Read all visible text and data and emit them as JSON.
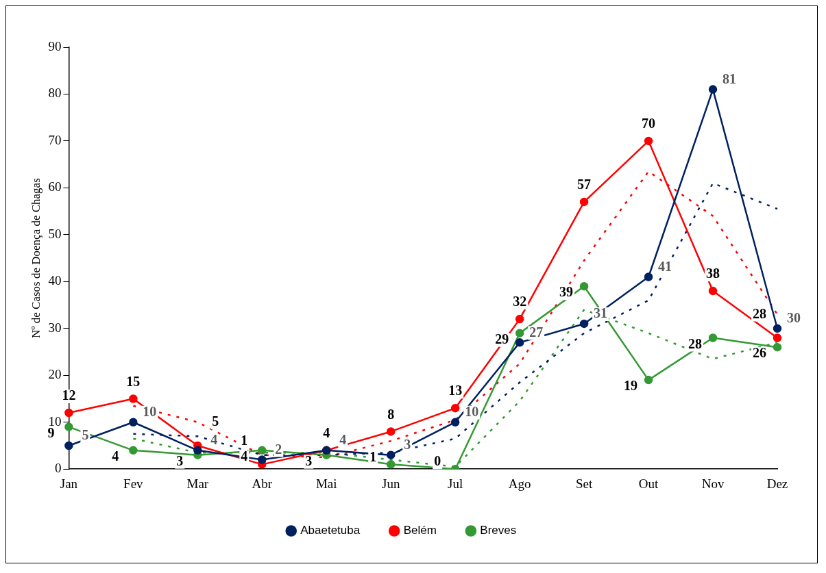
{
  "chart_data": {
    "type": "line",
    "ylabel": "Nº de Casos de Doença de Chagas",
    "categories": [
      "Jan",
      "Fev",
      "Mar",
      "Abr",
      "Mai",
      "Jun",
      "Jul",
      "Ago",
      "Set",
      "Out",
      "Nov",
      "Dez"
    ],
    "ylim": [
      0,
      90
    ],
    "yticks": [
      0,
      10,
      20,
      30,
      40,
      50,
      60,
      70,
      80,
      90
    ],
    "grid": false,
    "legend": "bottom",
    "marker": "circle",
    "line_style": "solid",
    "series": [
      {
        "name": "Abaetetuba",
        "color": "#002060",
        "values": [
          5,
          10,
          4,
          2,
          4,
          3,
          10,
          27,
          31,
          41,
          81,
          30
        ],
        "value_labels": [
          "5",
          "10",
          "4",
          "2",
          "4",
          "3",
          "10",
          "27",
          "31",
          "41",
          "81",
          "30"
        ]
      },
      {
        "name": "Belém",
        "color": "#ff0000",
        "values": [
          12,
          15,
          5,
          1,
          4,
          8,
          13,
          32,
          57,
          70,
          38,
          28
        ],
        "value_labels": [
          "12",
          "15",
          "5",
          "1",
          "4",
          "8",
          "13",
          "32",
          "57",
          "70",
          "38",
          "28"
        ]
      },
      {
        "name": "Breves",
        "color": "#339933",
        "values": [
          9,
          4,
          3,
          4,
          3,
          1,
          0,
          29,
          39,
          19,
          28,
          26
        ],
        "value_labels": [
          "9",
          "4",
          "3",
          "4",
          "3",
          "1",
          "0",
          "29",
          "39",
          "19",
          "28",
          "26"
        ]
      },
      {
        "color": "#002060",
        "type": "line",
        "line_style": "dotted",
        "marker": "none",
        "values": [
          null,
          7.5,
          7,
          3,
          3,
          3.5,
          6.5,
          18.5,
          29,
          36,
          61,
          55.5
        ]
      },
      {
        "color": "#ff0000",
        "type": "line",
        "line_style": "dotted",
        "marker": "none",
        "values": [
          null,
          13.5,
          10,
          3,
          2.5,
          6,
          10.5,
          22.5,
          44.5,
          63.5,
          54,
          33
        ]
      },
      {
        "color": "#339933",
        "type": "line",
        "line_style": "dotted",
        "marker": "none",
        "values": [
          null,
          6.5,
          3.5,
          3.5,
          3.5,
          2,
          0.5,
          14.5,
          34,
          29,
          23.5,
          27
        ]
      }
    ]
  }
}
